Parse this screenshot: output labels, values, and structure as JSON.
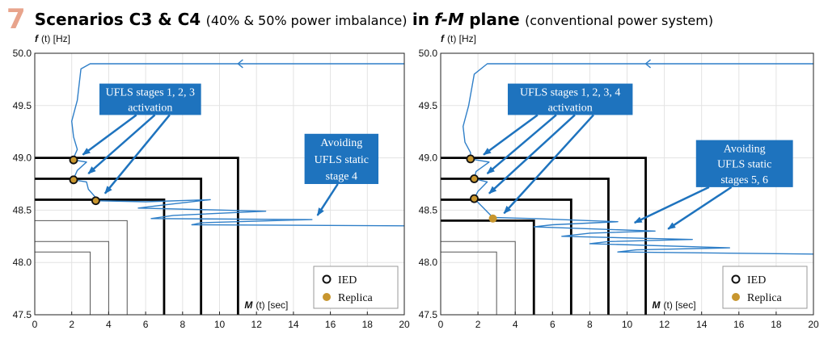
{
  "title": {
    "number": "7",
    "scenarios": "Scenarios C3 & C4",
    "imbalance": "(40% & 50% power imbalance)",
    "in_word": "in",
    "fm": "f-M",
    "plane": "plane",
    "system": "(conventional power system)"
  },
  "chart_data": [
    {
      "type": "line",
      "xlabel_var": "M",
      "xlabel_rest": "(t) [sec]",
      "ylabel_var": "f",
      "ylabel_rest": "(t) [Hz]",
      "xlim": [
        0,
        20
      ],
      "ylim": [
        47.5,
        50.0
      ],
      "x_ticks": [
        "0",
        "2",
        "4",
        "6",
        "8",
        "10",
        "12",
        "14",
        "16",
        "18",
        "20"
      ],
      "y_ticks": [
        "47.5",
        "48.0",
        "48.5",
        "49.0",
        "49.5",
        "50.0"
      ],
      "grid": true,
      "legend_position": "bottom-right",
      "legend": {
        "ied": "IED",
        "replica": "Replica"
      },
      "stage_boxes_bold": [
        {
          "f": 49.0,
          "M": 11
        },
        {
          "f": 48.8,
          "M": 9
        },
        {
          "f": 48.6,
          "M": 7
        }
      ],
      "stage_boxes_thin": [
        {
          "f": 48.4,
          "M": 5
        },
        {
          "f": 48.2,
          "M": 4
        },
        {
          "f": 48.1,
          "M": 3
        }
      ],
      "ied_points": [
        {
          "M": 2.1,
          "f": 48.98
        },
        {
          "M": 2.1,
          "f": 48.79
        },
        {
          "M": 3.3,
          "f": 48.59
        }
      ],
      "replica_points": [],
      "trajectory": [
        [
          20,
          49.9
        ],
        [
          12,
          49.9
        ],
        [
          3.0,
          49.9
        ],
        [
          2.5,
          49.85
        ],
        [
          2.3,
          49.55
        ],
        [
          2.0,
          49.35
        ],
        [
          2.1,
          49.2
        ],
        [
          2.3,
          49.08
        ],
        [
          2.1,
          49.0
        ],
        [
          2.1,
          48.98
        ],
        [
          2.8,
          48.96
        ],
        [
          2.3,
          48.88
        ],
        [
          2.1,
          48.8
        ],
        [
          2.1,
          48.79
        ],
        [
          2.8,
          48.77
        ],
        [
          2.9,
          48.7
        ],
        [
          3.3,
          48.62
        ],
        [
          3.3,
          48.59
        ],
        [
          6.0,
          48.58
        ],
        [
          9.5,
          48.6
        ],
        [
          7.0,
          48.55
        ],
        [
          5.6,
          48.52
        ],
        [
          12.5,
          48.49
        ],
        [
          7.5,
          48.45
        ],
        [
          6.3,
          48.42
        ],
        [
          15.0,
          48.41
        ],
        [
          9.0,
          48.38
        ],
        [
          8.5,
          48.36
        ],
        [
          20,
          48.35
        ]
      ],
      "annotations": [
        {
          "lines": [
            "UFLS stages 1, 2, 3",
            "activation"
          ],
          "box": {
            "x1": 3.5,
            "y1": 49.71,
            "x2": 9.0,
            "y2": 49.41
          },
          "arrows": [
            {
              "from": [
                5.5,
                49.41
              ],
              "to": [
                2.6,
                49.03
              ]
            },
            {
              "from": [
                6.5,
                49.41
              ],
              "to": [
                2.9,
                48.85
              ]
            },
            {
              "from": [
                7.3,
                49.41
              ],
              "to": [
                3.8,
                48.66
              ]
            }
          ]
        },
        {
          "lines": [
            "Avoiding",
            "UFLS static",
            "stage 4"
          ],
          "box": {
            "x1": 14.6,
            "y1": 49.23,
            "x2": 18.6,
            "y2": 48.75
          },
          "arrows": [
            {
              "from": [
                16.4,
                48.75
              ],
              "to": [
                15.3,
                48.45
              ]
            }
          ]
        }
      ]
    },
    {
      "type": "line",
      "xlabel_var": "M",
      "xlabel_rest": "(t) [sec]",
      "ylabel_var": "f",
      "ylabel_rest": "(t) [Hz]",
      "xlim": [
        0,
        20
      ],
      "ylim": [
        47.5,
        50.0
      ],
      "x_ticks": [
        "0",
        "2",
        "4",
        "6",
        "8",
        "10",
        "12",
        "14",
        "16",
        "18",
        "20"
      ],
      "y_ticks": [
        "47.5",
        "48.0",
        "48.5",
        "49.0",
        "49.5",
        "50.0"
      ],
      "grid": true,
      "legend_position": "bottom-right",
      "legend": {
        "ied": "IED",
        "replica": "Replica"
      },
      "stage_boxes_bold": [
        {
          "f": 49.0,
          "M": 11
        },
        {
          "f": 48.8,
          "M": 9
        },
        {
          "f": 48.6,
          "M": 7
        },
        {
          "f": 48.4,
          "M": 5
        }
      ],
      "stage_boxes_thin": [
        {
          "f": 48.2,
          "M": 4
        },
        {
          "f": 48.1,
          "M": 3
        }
      ],
      "ied_points": [
        {
          "M": 1.6,
          "f": 48.99
        },
        {
          "M": 1.8,
          "f": 48.8
        },
        {
          "M": 1.8,
          "f": 48.61
        }
      ],
      "replica_points": [
        {
          "M": 2.8,
          "f": 48.42
        }
      ],
      "trajectory": [
        [
          20,
          49.9
        ],
        [
          12,
          49.9
        ],
        [
          2.5,
          49.9
        ],
        [
          1.8,
          49.8
        ],
        [
          1.5,
          49.5
        ],
        [
          1.2,
          49.3
        ],
        [
          1.3,
          49.15
        ],
        [
          1.6,
          49.05
        ],
        [
          1.6,
          48.99
        ],
        [
          2.6,
          48.96
        ],
        [
          1.9,
          48.87
        ],
        [
          1.8,
          48.8
        ],
        [
          2.5,
          48.77
        ],
        [
          2.0,
          48.68
        ],
        [
          1.8,
          48.61
        ],
        [
          2.3,
          48.52
        ],
        [
          2.8,
          48.43
        ],
        [
          5.0,
          48.42
        ],
        [
          9.5,
          48.39
        ],
        [
          6.0,
          48.36
        ],
        [
          5.0,
          48.34
        ],
        [
          11.5,
          48.3
        ],
        [
          8.0,
          48.28
        ],
        [
          6.5,
          48.25
        ],
        [
          13.5,
          48.22
        ],
        [
          9.0,
          48.2
        ],
        [
          8.0,
          48.18
        ],
        [
          15.5,
          48.14
        ],
        [
          10.5,
          48.12
        ],
        [
          9.5,
          48.1
        ],
        [
          20,
          48.08
        ]
      ],
      "annotations": [
        {
          "lines": [
            "UFLS stages 1, 2, 3, 4",
            "activation"
          ],
          "box": {
            "x1": 3.6,
            "y1": 49.71,
            "x2": 10.3,
            "y2": 49.41
          },
          "arrows": [
            {
              "from": [
                5.2,
                49.41
              ],
              "to": [
                2.3,
                49.03
              ]
            },
            {
              "from": [
                6.2,
                49.41
              ],
              "to": [
                2.5,
                48.85
              ]
            },
            {
              "from": [
                7.2,
                49.41
              ],
              "to": [
                2.6,
                48.66
              ]
            },
            {
              "from": [
                8.2,
                49.41
              ],
              "to": [
                3.4,
                48.47
              ]
            }
          ]
        },
        {
          "lines": [
            "Avoiding",
            "UFLS static",
            "stages 5, 6"
          ],
          "box": {
            "x1": 13.7,
            "y1": 49.17,
            "x2": 18.9,
            "y2": 48.72
          },
          "arrows": [
            {
              "from": [
                14.4,
                48.72
              ],
              "to": [
                10.4,
                48.38
              ]
            },
            {
              "from": [
                15.6,
                48.72
              ],
              "to": [
                12.2,
                48.32
              ]
            }
          ]
        }
      ]
    }
  ]
}
